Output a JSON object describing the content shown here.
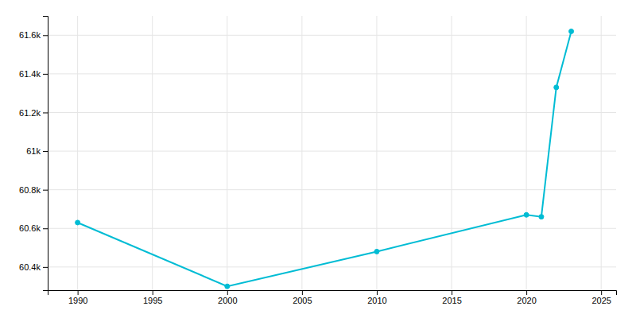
{
  "chart_data": {
    "type": "line",
    "x": [
      1990,
      2000,
      2010,
      2020,
      2021,
      2022,
      2023
    ],
    "values": [
      60630,
      60300,
      60480,
      60670,
      60660,
      61330,
      61620
    ],
    "color": "#00bcd4",
    "marker": "circle",
    "xlim": [
      1988,
      2026
    ],
    "ylim": [
      60280,
      61700
    ],
    "xticks": [
      1990,
      1995,
      2000,
      2005,
      2010,
      2015,
      2020,
      2025
    ],
    "yticks": [
      {
        "value": 60400,
        "label": "60.4k"
      },
      {
        "value": 60600,
        "label": "60.6k"
      },
      {
        "value": 60800,
        "label": "60.8k"
      },
      {
        "value": 61000,
        "label": "61k"
      },
      {
        "value": 61200,
        "label": "61.2k"
      },
      {
        "value": 61400,
        "label": "61.4k"
      },
      {
        "value": 61600,
        "label": "61.6k"
      }
    ],
    "grid": true
  }
}
